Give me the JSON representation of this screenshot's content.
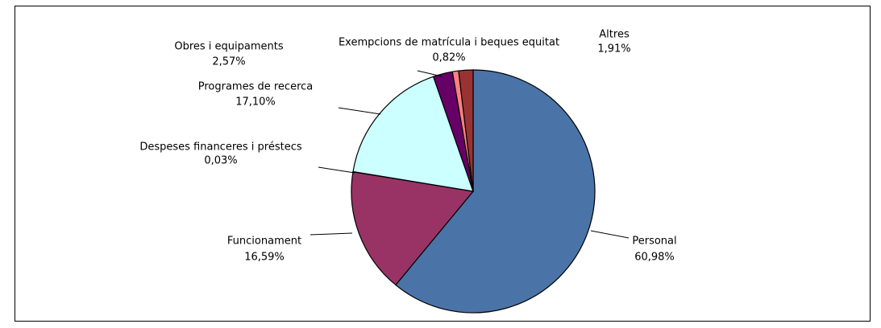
{
  "chart_data": {
    "type": "pie",
    "categories": [
      "Personal",
      "Funcionament",
      "Despeses financeres i préstecs",
      "Programes de recerca",
      "Obres i equipaments",
      "Exempcions de matrícula i beques equitat",
      "Altres"
    ],
    "values": [
      60.98,
      16.59,
      0.03,
      17.1,
      2.57,
      0.82,
      1.91
    ],
    "value_labels": [
      "60,98%",
      "16,59%",
      "0,03%",
      "17,10%",
      "2,57%",
      "0,82%",
      "1,91%"
    ],
    "colors": [
      "#4a74a8",
      "#993366",
      "#ffffcc",
      "#ccffff",
      "#660066",
      "#ff8080",
      "#993333"
    ]
  }
}
